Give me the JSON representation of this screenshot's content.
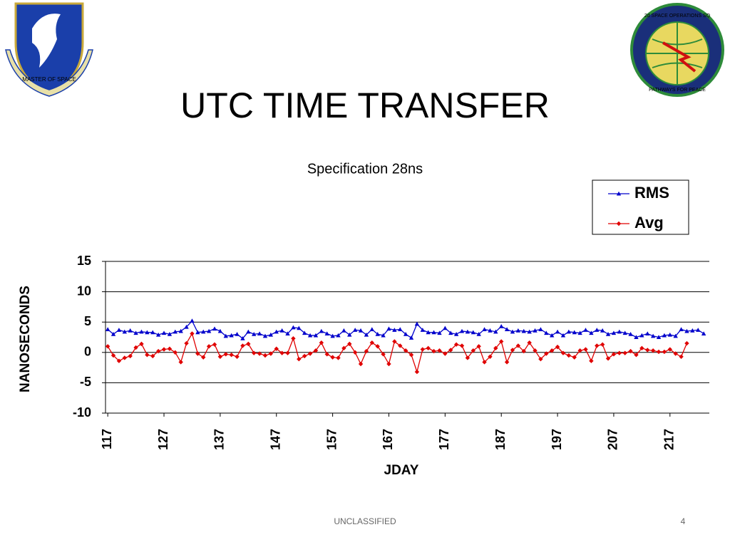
{
  "chart_data": {
    "type": "line",
    "title": "UTC TIME TRANSFER",
    "subtitle": "Specification 28ns",
    "x_label": "JDAY",
    "y_label": "NANOSECONDS",
    "x": [
      117,
      118,
      119,
      120,
      121,
      122,
      123,
      124,
      125,
      126,
      127,
      128,
      129,
      130,
      131,
      132,
      133,
      134,
      135,
      136,
      137,
      138,
      139,
      140,
      141,
      142,
      143,
      144,
      145,
      146,
      147,
      148,
      149,
      150,
      151,
      152,
      153,
      154,
      155,
      156,
      157,
      158,
      159,
      160,
      161,
      162,
      163,
      164,
      165,
      166,
      167,
      168,
      169,
      170,
      171,
      172,
      173,
      174,
      175,
      176,
      177,
      178,
      179,
      180,
      181,
      182,
      183,
      184,
      185,
      186,
      187,
      188,
      189,
      190,
      191,
      192,
      193,
      194,
      195,
      196,
      197,
      198,
      199,
      200,
      201,
      202,
      203,
      204,
      205,
      206,
      207,
      208,
      209,
      210,
      211,
      212,
      213,
      214,
      215,
      216,
      217,
      218,
      219,
      220,
      221,
      222,
      223
    ],
    "xlim": [
      116.6,
      224
    ],
    "xticks": [
      117,
      127,
      137,
      147,
      157,
      167,
      177,
      187,
      197,
      207,
      217
    ],
    "ylim": [
      -10,
      15
    ],
    "yticks": [
      -10,
      -5,
      0,
      5,
      10,
      15
    ],
    "grid": true,
    "legend": "upper right",
    "series": [
      {
        "name": "RMS",
        "color": "#0000cc",
        "marker": "triangle",
        "values": [
          3.8,
          3.0,
          3.7,
          3.4,
          3.6,
          3.2,
          3.4,
          3.3,
          3.3,
          2.9,
          3.2,
          3.0,
          3.4,
          3.5,
          4.2,
          5.2,
          3.3,
          3.4,
          3.5,
          3.9,
          3.5,
          2.7,
          2.8,
          3.0,
          2.3,
          3.4,
          3.0,
          3.1,
          2.7,
          2.9,
          3.4,
          3.6,
          3.1,
          4.1,
          4.0,
          3.2,
          2.8,
          2.8,
          3.5,
          3.1,
          2.7,
          2.8,
          3.6,
          2.9,
          3.7,
          3.6,
          2.9,
          3.8,
          3.0,
          2.8,
          3.9,
          3.7,
          3.8,
          3.0,
          2.4,
          4.7,
          3.7,
          3.3,
          3.3,
          3.2,
          4.0,
          3.2,
          3.0,
          3.5,
          3.4,
          3.3,
          3.0,
          3.8,
          3.6,
          3.4,
          4.3,
          3.8,
          3.4,
          3.6,
          3.5,
          3.4,
          3.6,
          3.8,
          3.2,
          2.8,
          3.4,
          2.8,
          3.4,
          3.3,
          3.2,
          3.7,
          3.2,
          3.7,
          3.6,
          3.0,
          3.2,
          3.4,
          3.2,
          3.0,
          2.5,
          2.8,
          3.1,
          2.7,
          2.5,
          2.8,
          2.9,
          2.7,
          3.8,
          3.5,
          3.6,
          3.7,
          3.1
        ]
      },
      {
        "name": "Avg",
        "color": "#e00000",
        "marker": "diamond",
        "values": [
          1.0,
          -0.5,
          -1.4,
          -0.9,
          -0.6,
          0.8,
          1.4,
          -0.4,
          -0.6,
          0.2,
          0.5,
          0.6,
          0.0,
          -1.6,
          1.5,
          3.1,
          -0.2,
          -0.8,
          1.0,
          1.3,
          -0.7,
          -0.3,
          -0.4,
          -0.7,
          1.1,
          1.4,
          -0.1,
          -0.2,
          -0.5,
          -0.2,
          0.6,
          -0.1,
          -0.1,
          2.3,
          -1.1,
          -0.6,
          -0.2,
          0.3,
          1.6,
          -0.3,
          -0.8,
          -0.9,
          0.7,
          1.4,
          0.0,
          -1.9,
          0.2,
          1.6,
          1.0,
          -0.3,
          -1.9,
          1.8,
          1.1,
          0.3,
          -0.4,
          -3.2,
          0.5,
          0.7,
          0.2,
          0.3,
          -0.2,
          0.4,
          1.3,
          1.1,
          -0.9,
          0.3,
          1.0,
          -1.6,
          -0.7,
          0.7,
          1.8,
          -1.6,
          0.4,
          1.1,
          0.2,
          1.6,
          0.3,
          -1.1,
          -0.2,
          0.3,
          0.9,
          -0.1,
          -0.5,
          -0.8,
          0.3,
          0.5,
          -1.4,
          1.1,
          1.3,
          -1.0,
          -0.3,
          -0.1,
          -0.1,
          0.2,
          -0.4,
          0.7,
          0.4,
          0.3,
          0.1,
          0.1,
          0.5,
          -0.2,
          -0.7,
          1.5,
          null,
          null,
          null
        ]
      }
    ]
  },
  "slide": {
    "footer": "UNCLASSIFIED",
    "page_number": 4,
    "left_logo": "MASTER OF SPACE",
    "right_logo_top": "2d SPACE OPERATIONS SQ",
    "right_logo_bottom": "PATHWAYS FOR PEACE"
  }
}
